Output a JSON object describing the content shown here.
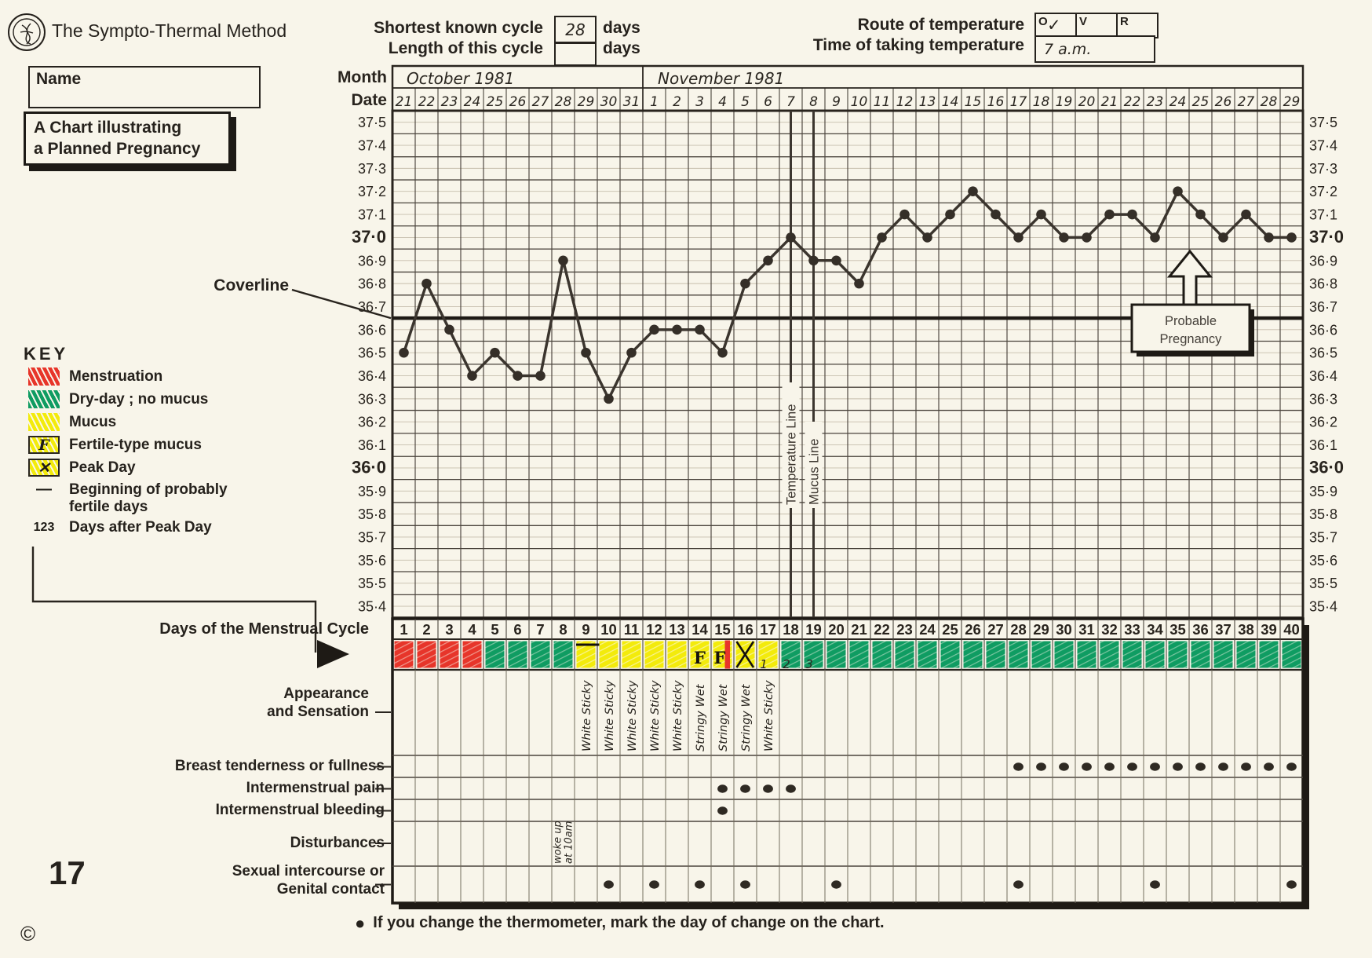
{
  "header": {
    "method_title": "The Sympto-Thermal Method",
    "cycle": {
      "shortest_label": "Shortest known cycle",
      "shortest_value": "28",
      "length_label": "Length of this cycle",
      "length_value": "",
      "days_word": "days"
    },
    "route": {
      "label": "Route of temperature",
      "options": [
        {
          "label": "O",
          "checked": true
        },
        {
          "label": "V",
          "checked": false
        },
        {
          "label": "R",
          "checked": false
        }
      ],
      "check": "✓",
      "time_label": "Time of taking temperature",
      "time_value": "7 a.m."
    }
  },
  "left_panel": {
    "name_label": "Name",
    "chart_title_line1": "A Chart illustrating",
    "chart_title_line2": "a Planned Pregnancy",
    "coverline_label": "Coverline",
    "key": {
      "heading": "KEY",
      "items": [
        {
          "swatch": "red-scribble",
          "swatch_text": "",
          "label": "Menstruation"
        },
        {
          "swatch": "green-scribble",
          "swatch_text": "",
          "label": "Dry-day ; no mucus"
        },
        {
          "swatch": "yellow-scribble",
          "swatch_text": "",
          "label": "Mucus"
        },
        {
          "swatch": "yellow-f",
          "swatch_text": "F",
          "label": "Fertile-type mucus"
        },
        {
          "swatch": "yellow-x",
          "swatch_text": "✕",
          "label": "Peak Day"
        },
        {
          "swatch": "dash",
          "swatch_text": "—",
          "label": "Beginning of probably fertile days"
        },
        {
          "swatch": "digits",
          "swatch_text": "123",
          "label": "Days after Peak Day"
        }
      ]
    },
    "page_number": "17",
    "copyright": "©"
  },
  "chart_data": {
    "type": "line",
    "title": "Basal body temperature (°C) by day of the menstrual cycle",
    "month_label": "Month",
    "date_label": "Date",
    "months": [
      {
        "label": "October 1981",
        "day_span": [
          1,
          11
        ]
      },
      {
        "label": "November 1981",
        "day_span": [
          12,
          40
        ]
      }
    ],
    "dates": [
      "21",
      "22",
      "23",
      "24",
      "25",
      "26",
      "27",
      "28",
      "29",
      "30",
      "31",
      "1",
      "2",
      "3",
      "4",
      "5",
      "6",
      "7",
      "8",
      "9",
      "10",
      "11",
      "12",
      "13",
      "14",
      "15",
      "16",
      "17",
      "18",
      "19",
      "20",
      "21",
      "22",
      "23",
      "24",
      "25",
      "26",
      "27",
      "28",
      "29"
    ],
    "cycle_days": [
      1,
      2,
      3,
      4,
      5,
      6,
      7,
      8,
      9,
      10,
      11,
      12,
      13,
      14,
      15,
      16,
      17,
      18,
      19,
      20,
      21,
      22,
      23,
      24,
      25,
      26,
      27,
      28,
      29,
      30,
      31,
      32,
      33,
      34,
      35,
      36,
      37,
      38,
      39,
      40
    ],
    "y_ticks": [
      "37·5",
      "37·4",
      "37·3",
      "37·2",
      "37·1",
      "37·0",
      "36·9",
      "36·8",
      "36·7",
      "36·6",
      "36·5",
      "36·4",
      "36·3",
      "36·2",
      "36·1",
      "36·0",
      "35·9",
      "35·8",
      "35·7",
      "35·6",
      "35·5",
      "35·4"
    ],
    "bold_ticks": [
      "37·0",
      "36·0"
    ],
    "ylim": [
      35.4,
      37.5
    ],
    "temps": [
      36.5,
      36.8,
      36.6,
      36.4,
      36.5,
      36.4,
      36.4,
      36.9,
      36.5,
      36.3,
      36.5,
      36.6,
      36.6,
      36.6,
      36.5,
      36.8,
      36.9,
      37.0,
      36.9,
      36.9,
      36.8,
      37.0,
      37.1,
      37.0,
      37.1,
      37.2,
      37.1,
      37.0,
      37.1,
      37.0,
      37.0,
      37.1,
      37.1,
      37.0,
      37.2,
      37.1,
      37.0,
      37.1,
      37.0,
      37.0
    ],
    "coverline": {
      "label": "Coverline",
      "value": 36.65
    },
    "temperature_line": {
      "label": "Temperature Line",
      "day": 18
    },
    "mucus_line": {
      "label": "Mucus Line",
      "day": 19
    },
    "annotation": {
      "line1": "Probable",
      "line2": "Pregnancy",
      "points_to_day": 35
    }
  },
  "strip": {
    "row_label": "Days of the Menstrual Cycle",
    "cells": [
      {
        "day": 1,
        "color": "red",
        "mark": null,
        "bleed": false
      },
      {
        "day": 2,
        "color": "red",
        "mark": null,
        "bleed": false
      },
      {
        "day": 3,
        "color": "red",
        "mark": null,
        "bleed": false
      },
      {
        "day": 4,
        "color": "red",
        "mark": null,
        "bleed": false
      },
      {
        "day": 5,
        "color": "green",
        "mark": null,
        "bleed": false
      },
      {
        "day": 6,
        "color": "green",
        "mark": null,
        "bleed": false
      },
      {
        "day": 7,
        "color": "green",
        "mark": null,
        "bleed": false
      },
      {
        "day": 8,
        "color": "green",
        "mark": null,
        "bleed": false
      },
      {
        "day": 9,
        "color": "yellow",
        "mark": "dash",
        "bleed": false
      },
      {
        "day": 10,
        "color": "yellow",
        "mark": null,
        "bleed": false
      },
      {
        "day": 11,
        "color": "yellow",
        "mark": null,
        "bleed": false
      },
      {
        "day": 12,
        "color": "yellow",
        "mark": null,
        "bleed": false
      },
      {
        "day": 13,
        "color": "yellow",
        "mark": null,
        "bleed": false
      },
      {
        "day": 14,
        "color": "yellow",
        "mark": "F",
        "bleed": false
      },
      {
        "day": 15,
        "color": "yellow",
        "mark": "F",
        "bleed": true
      },
      {
        "day": 16,
        "color": "yellow",
        "mark": "X",
        "bleed": false
      },
      {
        "day": 17,
        "color": "yellow",
        "mark": "1",
        "bleed": false
      },
      {
        "day": 18,
        "color": "green",
        "mark": "2",
        "bleed": false
      },
      {
        "day": 19,
        "color": "green",
        "mark": "3",
        "bleed": false
      },
      {
        "day": 20,
        "color": "green",
        "mark": null,
        "bleed": false
      },
      {
        "day": 21,
        "color": "green",
        "mark": null,
        "bleed": false
      },
      {
        "day": 22,
        "color": "green",
        "mark": null,
        "bleed": false
      },
      {
        "day": 23,
        "color": "green",
        "mark": null,
        "bleed": false
      },
      {
        "day": 24,
        "color": "green",
        "mark": null,
        "bleed": false
      },
      {
        "day": 25,
        "color": "green",
        "mark": null,
        "bleed": false
      },
      {
        "day": 26,
        "color": "green",
        "mark": null,
        "bleed": false
      },
      {
        "day": 27,
        "color": "green",
        "mark": null,
        "bleed": false
      },
      {
        "day": 28,
        "color": "green",
        "mark": null,
        "bleed": false
      },
      {
        "day": 29,
        "color": "green",
        "mark": null,
        "bleed": false
      },
      {
        "day": 30,
        "color": "green",
        "mark": null,
        "bleed": false
      },
      {
        "day": 31,
        "color": "green",
        "mark": null,
        "bleed": false
      },
      {
        "day": 32,
        "color": "green",
        "mark": null,
        "bleed": false
      },
      {
        "day": 33,
        "color": "green",
        "mark": null,
        "bleed": false
      },
      {
        "day": 34,
        "color": "green",
        "mark": null,
        "bleed": false
      },
      {
        "day": 35,
        "color": "green",
        "mark": null,
        "bleed": false
      },
      {
        "day": 36,
        "color": "green",
        "mark": null,
        "bleed": false
      },
      {
        "day": 37,
        "color": "green",
        "mark": null,
        "bleed": false
      },
      {
        "day": 38,
        "color": "green",
        "mark": null,
        "bleed": false
      },
      {
        "day": 39,
        "color": "green",
        "mark": null,
        "bleed": false
      },
      {
        "day": 40,
        "color": "green",
        "mark": null,
        "bleed": false
      }
    ]
  },
  "symptoms": {
    "rows": [
      {
        "label": "Appearance and Sensation",
        "entries": [
          {
            "day": 9,
            "text": "White Sticky"
          },
          {
            "day": 10,
            "text": "White Sticky"
          },
          {
            "day": 11,
            "text": "White Sticky"
          },
          {
            "day": 12,
            "text": "White Sticky"
          },
          {
            "day": 13,
            "text": "White Sticky"
          },
          {
            "day": 14,
            "text": "Stringy Wet"
          },
          {
            "day": 15,
            "text": "Stringy Wet"
          },
          {
            "day": 16,
            "text": "Stringy Wet"
          },
          {
            "day": 17,
            "text": "White Sticky"
          }
        ]
      },
      {
        "label": "Breast tenderness or fullness",
        "dot_days": [
          28,
          29,
          30,
          31,
          32,
          33,
          34,
          35,
          36,
          37,
          38,
          39,
          40
        ]
      },
      {
        "label": "Intermenstrual pain",
        "dot_days": [
          15,
          16,
          17,
          18
        ]
      },
      {
        "label": "Intermenstrual bleeding",
        "dot_days": [
          15
        ]
      },
      {
        "label": "Disturbances",
        "entries": [
          {
            "day": 8,
            "text": "woke up at 10am",
            "lines": [
              "woke up",
              "at 10am"
            ]
          }
        ]
      },
      {
        "label": "Sexual intercourse or Genital contact",
        "dot_days": [
          10,
          12,
          14,
          16,
          20,
          28,
          34,
          40
        ]
      }
    ]
  },
  "footer": {
    "bullet": "●",
    "note": "If you change the thermometer, mark the day of change on the chart."
  },
  "colors": {
    "menstruation_red": "#e7352a",
    "dry_day_green": "#0f9c62",
    "mucus_yellow": "#f3eb0b",
    "ink": "#29241e",
    "paper": "#f8f5ea"
  }
}
